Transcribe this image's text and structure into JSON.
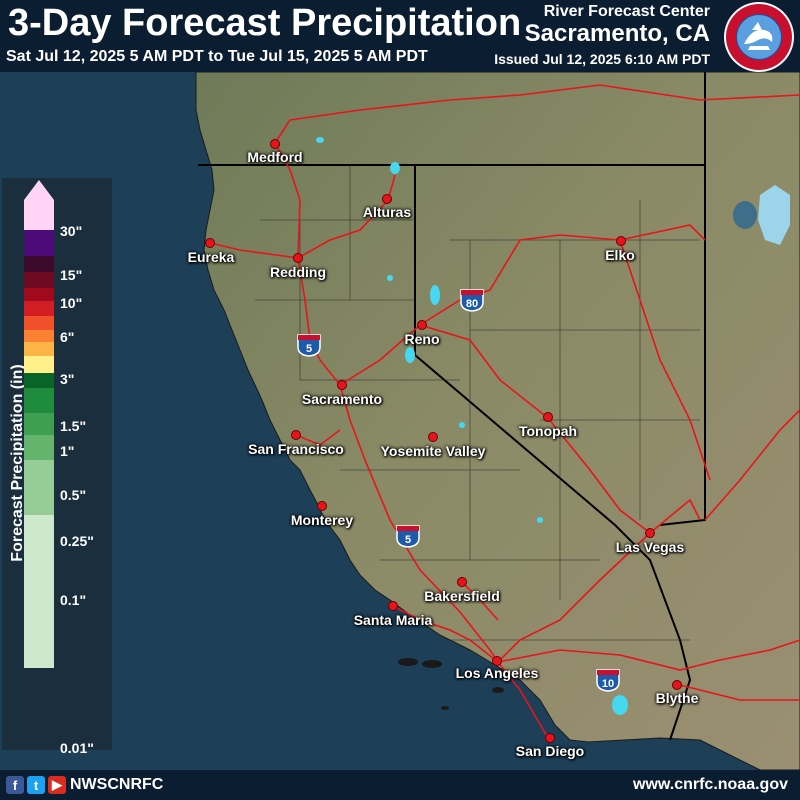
{
  "header": {
    "title": "3-Day Forecast Precipitation",
    "date_range": "Sat Jul 12, 2025 5 AM PDT to Tue Jul 15, 2025 5 AM PDT",
    "rfc_label": "River Forecast Center",
    "rfc_location": "Sacramento, CA",
    "issued": "Issued Jul 12, 2025 6:10 AM PDT",
    "logo_text": "NATIONAL WEATHER SERVICE"
  },
  "legend": {
    "axis_title": "Forecast Precipitation (in)",
    "labels": [
      "30\"",
      "15\"",
      "10\"",
      "6\"",
      "3\"",
      "1.5\"",
      "1\"",
      "0.5\"",
      "0.25\"",
      "0.1\"",
      "0.01\""
    ],
    "colors": [
      "#ffd4f5",
      "#4b0a78",
      "#3c0a2a",
      "#6e0a22",
      "#a00a1c",
      "#d21e22",
      "#f0502a",
      "#fa8232",
      "#fcb446",
      "#fff08c",
      "#0a6428",
      "#1e8c3c",
      "#3ca050",
      "#64b46e",
      "#96cd96",
      "#cde8cd"
    ]
  },
  "cities": [
    {
      "name": "Medford"
    },
    {
      "name": "Alturas"
    },
    {
      "name": "Eureka"
    },
    {
      "name": "Redding"
    },
    {
      "name": "Elko"
    },
    {
      "name": "Reno"
    },
    {
      "name": "Sacramento"
    },
    {
      "name": "San Francisco"
    },
    {
      "name": "Yosemite Valley"
    },
    {
      "name": "Tonopah"
    },
    {
      "name": "Monterey"
    },
    {
      "name": "Las Vegas"
    },
    {
      "name": "Bakersfield"
    },
    {
      "name": "Santa Maria"
    },
    {
      "name": "Los Angeles"
    },
    {
      "name": "Blythe"
    },
    {
      "name": "San Diego"
    }
  ],
  "highways": [
    "5",
    "80",
    "5",
    "10"
  ],
  "footer": {
    "social_handle": "NWSCNRFC",
    "website": "www.cnrfc.noaa.gov",
    "social_icons": [
      "facebook-icon",
      "twitter-icon",
      "youtube-icon"
    ]
  },
  "colors": {
    "ocean": "#1e3f58",
    "land": "#7a7558",
    "roads": "#e8141c",
    "water_bodies": "#46d8f0",
    "state_borders": "#000000"
  }
}
